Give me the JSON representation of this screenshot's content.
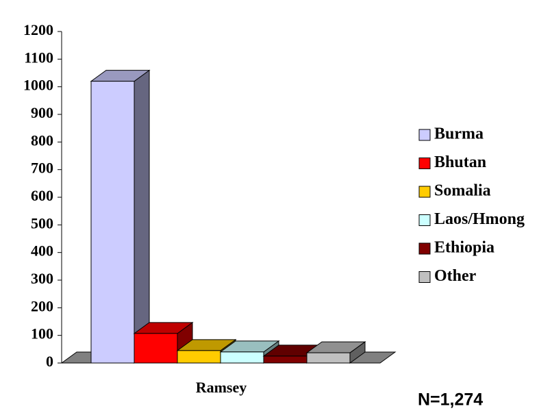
{
  "chart_data": {
    "type": "bar",
    "categories": [
      "Ramsey"
    ],
    "series": [
      {
        "name": "Burma",
        "color": "#ccccff",
        "values": [
          1020
        ]
      },
      {
        "name": "Bhutan",
        "color": "#ff0000",
        "values": [
          107
        ]
      },
      {
        "name": "Somalia",
        "color": "#ffcc00",
        "values": [
          45
        ]
      },
      {
        "name": "Laos/Hmong",
        "color": "#ccffff",
        "values": [
          40
        ]
      },
      {
        "name": "Ethiopia",
        "color": "#800000",
        "values": [
          25
        ]
      },
      {
        "name": "Other",
        "color": "#c0c0c0",
        "values": [
          37
        ]
      }
    ],
    "ylim": [
      0,
      1200
    ],
    "yticks": [
      0,
      100,
      200,
      300,
      400,
      500,
      600,
      700,
      800,
      900,
      1000,
      1100,
      1200
    ],
    "legend": "right",
    "annotation": "N=1,274"
  }
}
